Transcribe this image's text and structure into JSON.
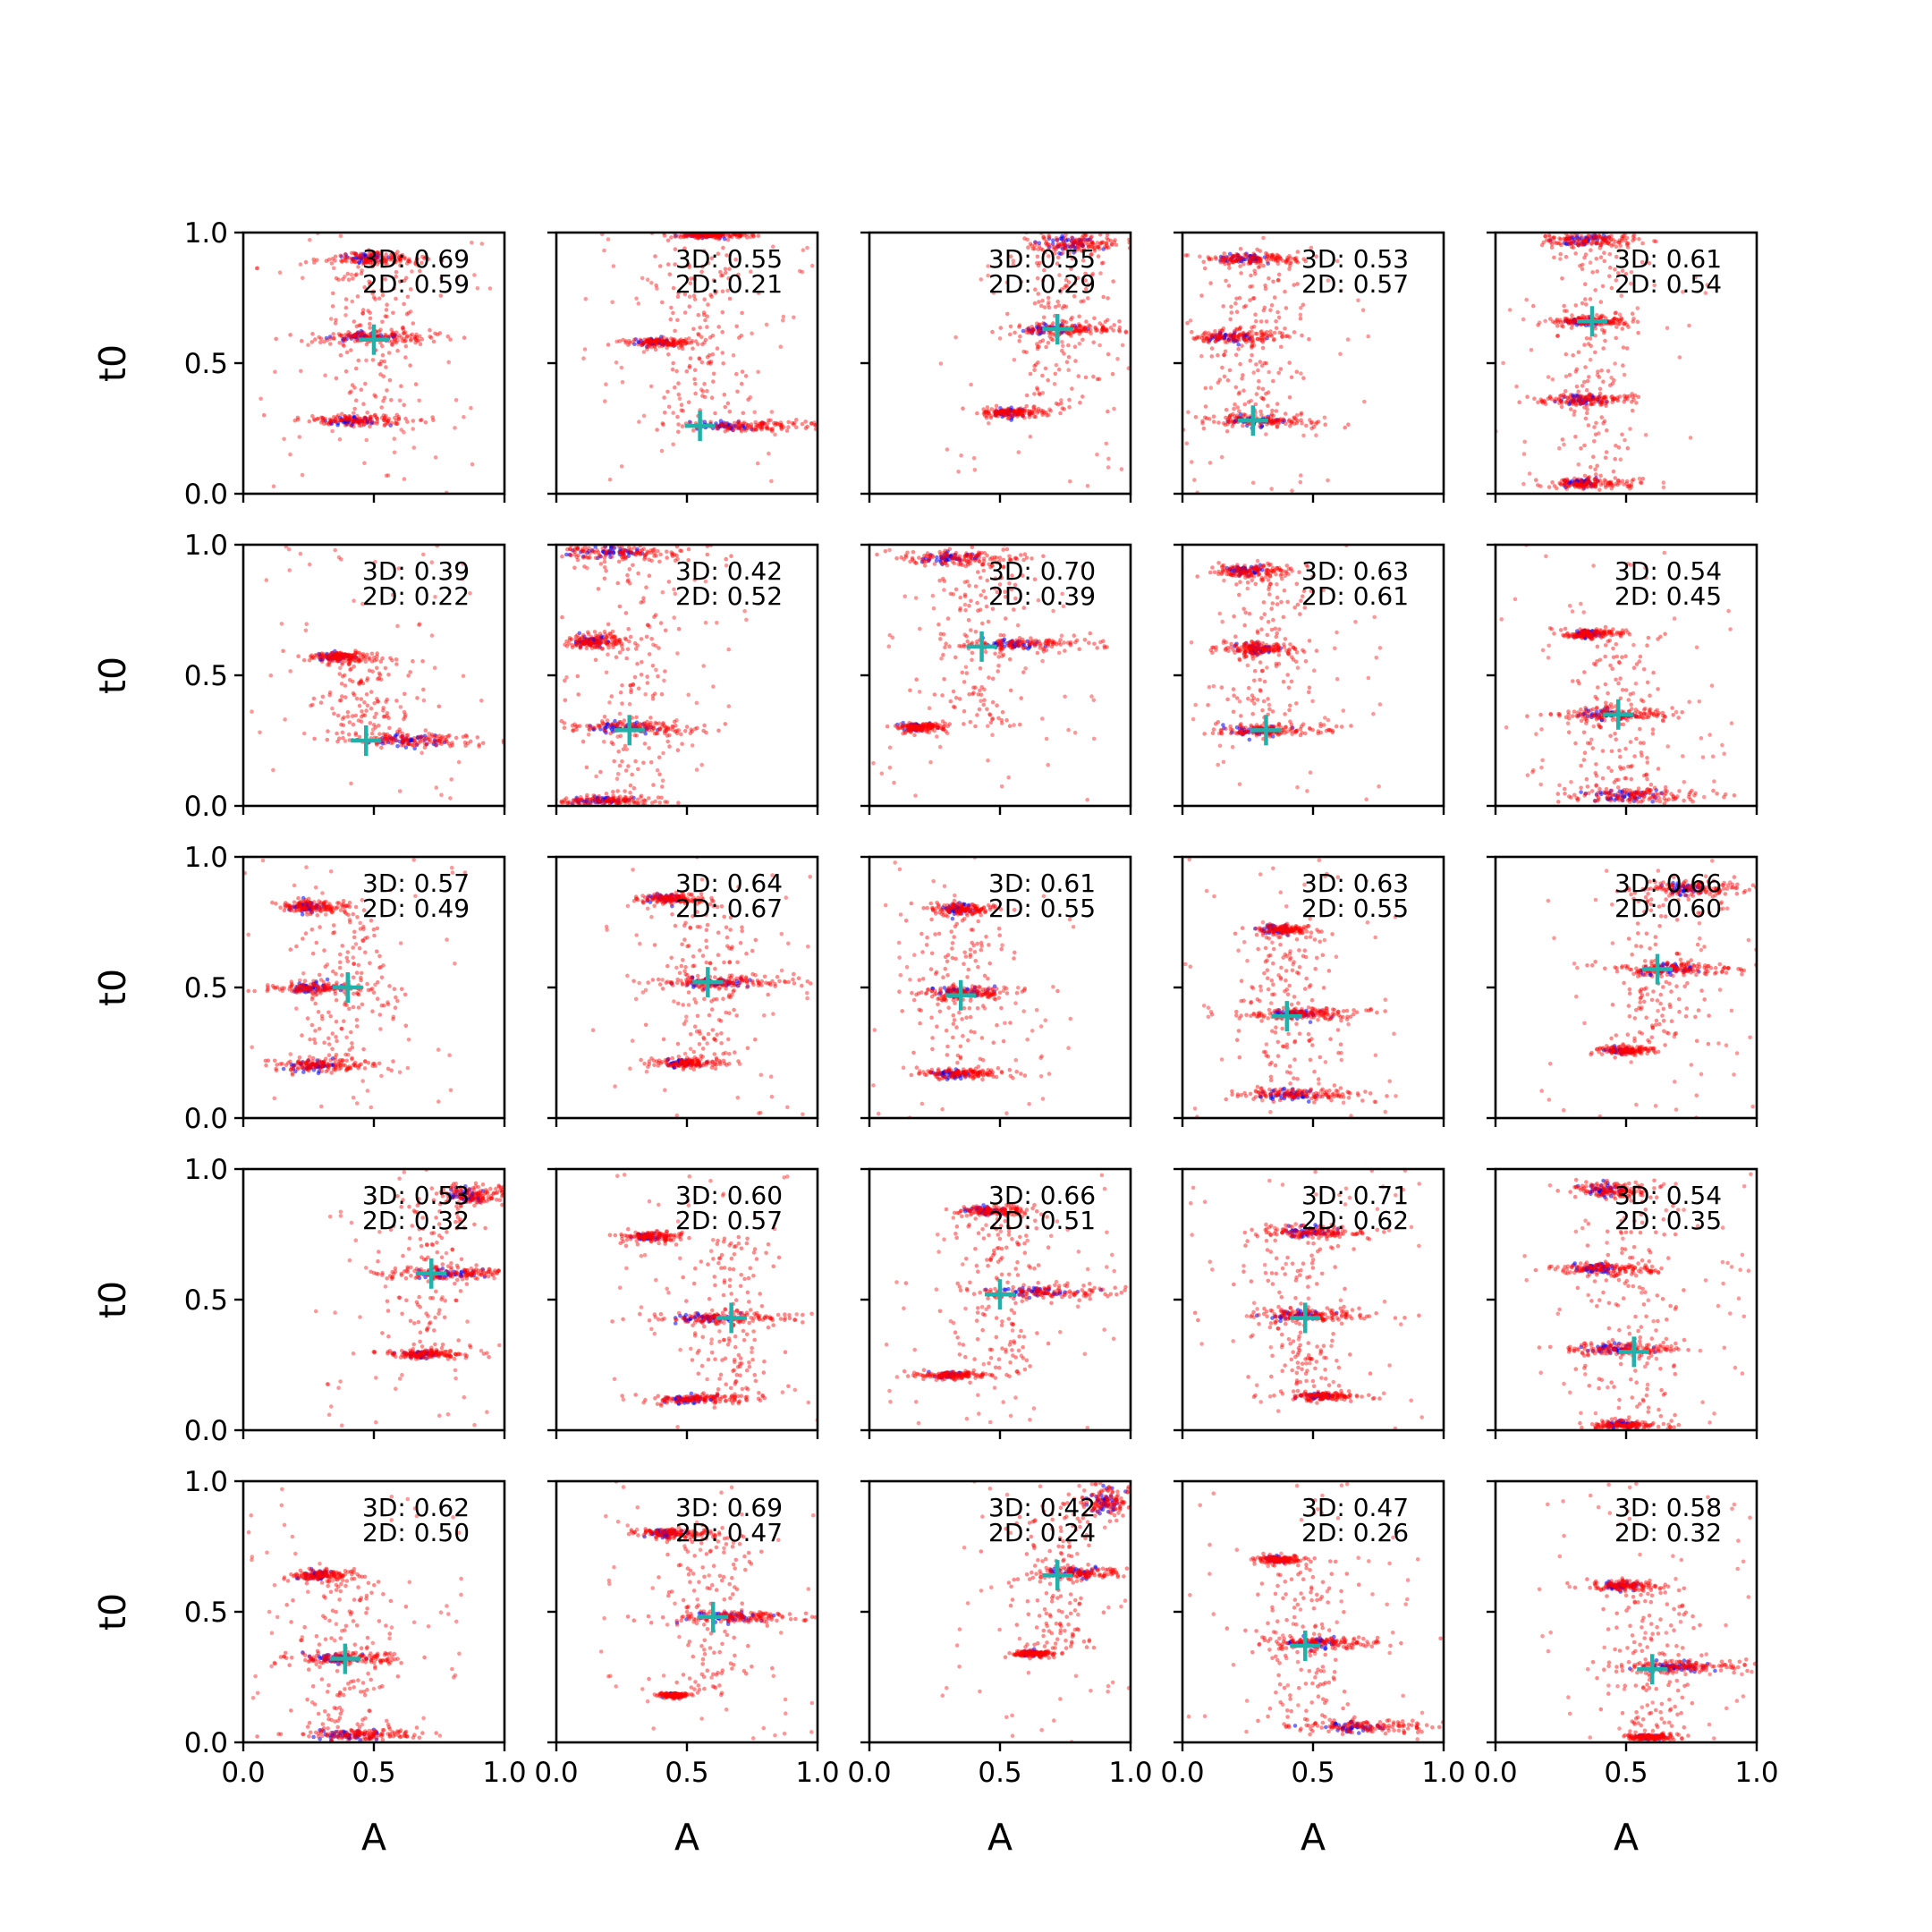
{
  "chart_data": {
    "type": "scatter",
    "layout": "5x5 grid of subplots",
    "shared_axes": {
      "xlabel": "A",
      "ylabel": "t0",
      "xlim": [
        0,
        1
      ],
      "ylim": [
        0,
        1
      ],
      "xticks": [
        0.0,
        0.5,
        1.0
      ],
      "yticks": [
        0.0,
        0.5,
        1.0
      ],
      "xtick_labels": [
        "0.0",
        "0.5",
        "1.0"
      ],
      "ytick_labels": [
        "0.0",
        "0.5",
        "1.0"
      ]
    },
    "colors": {
      "cloud_a": "#ff0000",
      "cloud_b": "#0000ff",
      "marker": "#20b2aa"
    },
    "panels": [
      {
        "score_3d": "3D: 0.69",
        "score_2d": "2D: 0.59",
        "marker": [
          0.5,
          0.59
        ],
        "clusters": [
          [
            0.5,
            0.9,
            0.1,
            0.012
          ],
          [
            0.5,
            0.6,
            0.13,
            0.012
          ],
          [
            0.45,
            0.28,
            0.12,
            0.012
          ]
        ]
      },
      {
        "score_3d": "3D: 0.55",
        "score_2d": "2D: 0.21",
        "marker": [
          0.55,
          0.26
        ],
        "clusters": [
          [
            0.4,
            0.58,
            0.07,
            0.01
          ],
          [
            0.72,
            0.26,
            0.16,
            0.012
          ],
          [
            0.6,
            0.99,
            0.08,
            0.006
          ]
        ]
      },
      {
        "score_3d": "3D: 0.55",
        "score_2d": "2D: 0.29",
        "marker": [
          0.72,
          0.63
        ],
        "clusters": [
          [
            0.8,
            0.96,
            0.1,
            0.02
          ],
          [
            0.75,
            0.63,
            0.12,
            0.012
          ],
          [
            0.55,
            0.31,
            0.07,
            0.01
          ]
        ]
      },
      {
        "score_3d": "3D: 0.53",
        "score_2d": "2D: 0.57",
        "marker": [
          0.27,
          0.28
        ],
        "clusters": [
          [
            0.27,
            0.9,
            0.1,
            0.012
          ],
          [
            0.22,
            0.6,
            0.1,
            0.012
          ],
          [
            0.3,
            0.28,
            0.12,
            0.012
          ]
        ]
      },
      {
        "score_3d": "3D: 0.61",
        "score_2d": "2D: 0.54",
        "marker": [
          0.37,
          0.66
        ],
        "clusters": [
          [
            0.38,
            0.97,
            0.1,
            0.012
          ],
          [
            0.36,
            0.66,
            0.08,
            0.01
          ],
          [
            0.36,
            0.36,
            0.1,
            0.012
          ],
          [
            0.36,
            0.04,
            0.08,
            0.01
          ]
        ]
      },
      {
        "score_3d": "3D: 0.39",
        "score_2d": "2D: 0.22",
        "marker": [
          0.47,
          0.25
        ],
        "clusters": [
          [
            0.38,
            0.57,
            0.07,
            0.01
          ],
          [
            0.68,
            0.25,
            0.16,
            0.012
          ]
        ]
      },
      {
        "score_3d": "3D: 0.42",
        "score_2d": "2D: 0.52",
        "marker": [
          0.28,
          0.29
        ],
        "clusters": [
          [
            0.25,
            0.97,
            0.15,
            0.015
          ],
          [
            0.15,
            0.63,
            0.06,
            0.015
          ],
          [
            0.3,
            0.3,
            0.14,
            0.012
          ],
          [
            0.2,
            0.02,
            0.12,
            0.01
          ]
        ]
      },
      {
        "score_3d": "3D: 0.70",
        "score_2d": "2D: 0.39",
        "marker": [
          0.43,
          0.61
        ],
        "clusters": [
          [
            0.35,
            0.95,
            0.12,
            0.015
          ],
          [
            0.6,
            0.62,
            0.14,
            0.012
          ],
          [
            0.2,
            0.3,
            0.05,
            0.01
          ]
        ]
      },
      {
        "score_3d": "3D: 0.63",
        "score_2d": "2D: 0.61",
        "marker": [
          0.32,
          0.29
        ],
        "clusters": [
          [
            0.27,
            0.9,
            0.08,
            0.012
          ],
          [
            0.3,
            0.6,
            0.08,
            0.012
          ],
          [
            0.33,
            0.29,
            0.12,
            0.012
          ]
        ]
      },
      {
        "score_3d": "3D: 0.54",
        "score_2d": "2D: 0.45",
        "marker": [
          0.47,
          0.35
        ],
        "clusters": [
          [
            0.37,
            0.66,
            0.06,
            0.01
          ],
          [
            0.47,
            0.35,
            0.12,
            0.012
          ],
          [
            0.55,
            0.04,
            0.14,
            0.015
          ]
        ]
      },
      {
        "score_3d": "3D: 0.57",
        "score_2d": "2D: 0.49",
        "marker": [
          0.4,
          0.5
        ],
        "clusters": [
          [
            0.27,
            0.81,
            0.07,
            0.012
          ],
          [
            0.3,
            0.5,
            0.1,
            0.014
          ],
          [
            0.3,
            0.2,
            0.1,
            0.012
          ]
        ]
      },
      {
        "score_3d": "3D: 0.64",
        "score_2d": "2D: 0.67",
        "marker": [
          0.58,
          0.52
        ],
        "clusters": [
          [
            0.45,
            0.84,
            0.07,
            0.01
          ],
          [
            0.65,
            0.52,
            0.14,
            0.012
          ],
          [
            0.5,
            0.21,
            0.07,
            0.01
          ]
        ]
      },
      {
        "score_3d": "3D: 0.61",
        "score_2d": "2D: 0.55",
        "marker": [
          0.35,
          0.47
        ],
        "clusters": [
          [
            0.35,
            0.8,
            0.06,
            0.012
          ],
          [
            0.4,
            0.48,
            0.12,
            0.012
          ],
          [
            0.35,
            0.17,
            0.09,
            0.01
          ]
        ]
      },
      {
        "score_3d": "3D: 0.63",
        "score_2d": "2D: 0.55",
        "marker": [
          0.4,
          0.39
        ],
        "clusters": [
          [
            0.38,
            0.72,
            0.06,
            0.01
          ],
          [
            0.48,
            0.4,
            0.12,
            0.012
          ],
          [
            0.45,
            0.09,
            0.12,
            0.012
          ]
        ]
      },
      {
        "score_3d": "3D: 0.66",
        "score_2d": "2D: 0.60",
        "marker": [
          0.62,
          0.57
        ],
        "clusters": [
          [
            0.75,
            0.88,
            0.1,
            0.015
          ],
          [
            0.72,
            0.57,
            0.14,
            0.012
          ],
          [
            0.5,
            0.26,
            0.06,
            0.008
          ]
        ]
      },
      {
        "score_3d": "3D: 0.53",
        "score_2d": "2D: 0.32",
        "marker": [
          0.72,
          0.6
        ],
        "clusters": [
          [
            0.88,
            0.9,
            0.08,
            0.02
          ],
          [
            0.8,
            0.6,
            0.14,
            0.012
          ],
          [
            0.7,
            0.29,
            0.08,
            0.008
          ]
        ]
      },
      {
        "score_3d": "3D: 0.60",
        "score_2d": "2D: 0.57",
        "marker": [
          0.67,
          0.43
        ],
        "clusters": [
          [
            0.37,
            0.74,
            0.06,
            0.01
          ],
          [
            0.62,
            0.43,
            0.14,
            0.012
          ],
          [
            0.55,
            0.12,
            0.1,
            0.01
          ]
        ]
      },
      {
        "score_3d": "3D: 0.66",
        "score_2d": "2D: 0.51",
        "marker": [
          0.5,
          0.52
        ],
        "clusters": [
          [
            0.48,
            0.84,
            0.08,
            0.01
          ],
          [
            0.68,
            0.53,
            0.17,
            0.012
          ],
          [
            0.33,
            0.21,
            0.07,
            0.008
          ]
        ]
      },
      {
        "score_3d": "3D: 0.71",
        "score_2d": "2D: 0.62",
        "marker": [
          0.47,
          0.43
        ],
        "clusters": [
          [
            0.5,
            0.76,
            0.1,
            0.012
          ],
          [
            0.5,
            0.44,
            0.12,
            0.012
          ],
          [
            0.55,
            0.13,
            0.07,
            0.008
          ]
        ]
      },
      {
        "score_3d": "3D: 0.54",
        "score_2d": "2D: 0.35",
        "marker": [
          0.53,
          0.3
        ],
        "clusters": [
          [
            0.45,
            0.92,
            0.08,
            0.015
          ],
          [
            0.42,
            0.62,
            0.1,
            0.012
          ],
          [
            0.5,
            0.31,
            0.12,
            0.012
          ],
          [
            0.5,
            0.02,
            0.07,
            0.008
          ]
        ]
      },
      {
        "score_3d": "3D: 0.62",
        "score_2d": "2D: 0.50",
        "marker": [
          0.39,
          0.32
        ],
        "clusters": [
          [
            0.3,
            0.64,
            0.06,
            0.01
          ],
          [
            0.4,
            0.32,
            0.12,
            0.012
          ],
          [
            0.45,
            0.03,
            0.14,
            0.012
          ]
        ]
      },
      {
        "score_3d": "3D: 0.69",
        "score_2d": "2D: 0.47",
        "marker": [
          0.6,
          0.48
        ],
        "clusters": [
          [
            0.45,
            0.8,
            0.08,
            0.01
          ],
          [
            0.7,
            0.48,
            0.14,
            0.012
          ],
          [
            0.45,
            0.18,
            0.03,
            0.005
          ]
        ]
      },
      {
        "score_3d": "3D: 0.42",
        "score_2d": "2D: 0.24",
        "marker": [
          0.72,
          0.64
        ],
        "clusters": [
          [
            0.92,
            0.92,
            0.06,
            0.03
          ],
          [
            0.82,
            0.65,
            0.1,
            0.012
          ],
          [
            0.63,
            0.34,
            0.04,
            0.006
          ]
        ]
      },
      {
        "score_3d": "3D: 0.47",
        "score_2d": "2D: 0.26",
        "marker": [
          0.47,
          0.37
        ],
        "clusters": [
          [
            0.37,
            0.7,
            0.04,
            0.008
          ],
          [
            0.55,
            0.38,
            0.12,
            0.012
          ],
          [
            0.7,
            0.06,
            0.14,
            0.012
          ]
        ]
      },
      {
        "score_3d": "3D: 0.58",
        "score_2d": "2D: 0.32",
        "marker": [
          0.6,
          0.28
        ],
        "clusters": [
          [
            0.5,
            0.6,
            0.07,
            0.01
          ],
          [
            0.72,
            0.29,
            0.14,
            0.012
          ],
          [
            0.6,
            0.02,
            0.05,
            0.006
          ]
        ]
      }
    ]
  }
}
